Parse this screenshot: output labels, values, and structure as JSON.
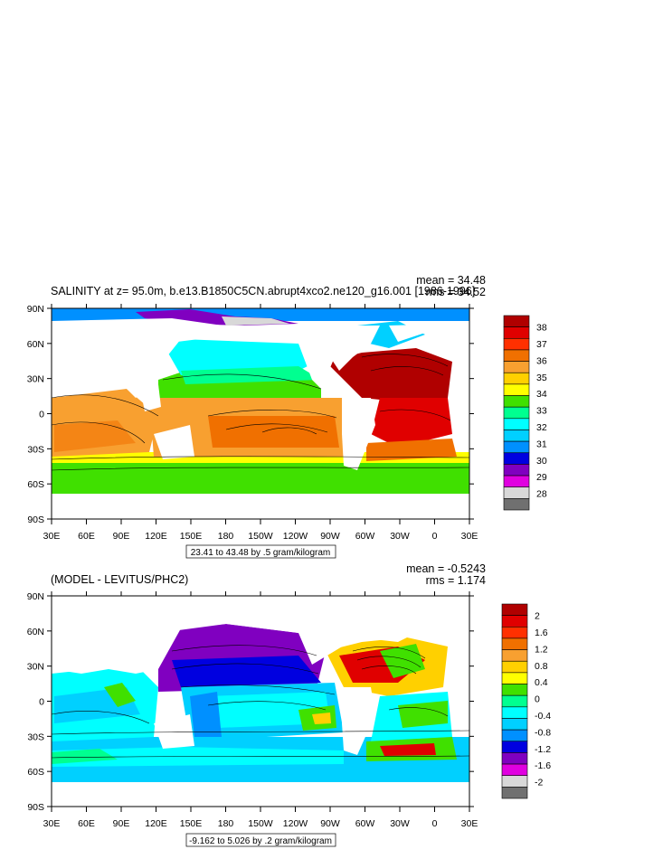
{
  "panel1": {
    "title": "SALINITY at z=  95.0m, b.e13.B1850C5CN.abrupt4xco2.ne120_g16.001 [1986-1996]",
    "mean": "mean = 34.48",
    "rms": "rms = 34.52",
    "info": "23.41 to 43.48 by .5 gram/kilogram",
    "colorbar": {
      "labels": [
        "38",
        "37",
        "36",
        "35",
        "34",
        "33",
        "32",
        "31",
        "30",
        "29",
        "28"
      ],
      "colors": [
        "#b00000",
        "#e00000",
        "#ff3000",
        "#f07000",
        "#f8a030",
        "#ffd000",
        "#ffff00",
        "#40e000",
        "#00ff90",
        "#00ffff",
        "#00d0ff",
        "#0090ff",
        "#0000e0",
        "#8000c0",
        "#e000e0",
        "#d8d8d8",
        "#707070"
      ]
    }
  },
  "panel2": {
    "title": "(MODEL - LEVITUS/PHC2)",
    "mean": "mean = -0.5243",
    "rms": "rms = 1.174",
    "info": "-9.162 to 5.026 by .2 gram/kilogram",
    "colorbar": {
      "labels": [
        "2",
        "1.6",
        "1.2",
        "0.8",
        "0.4",
        "0",
        "-0.4",
        "-0.8",
        "-1.2",
        "-1.6",
        "-2"
      ],
      "colors": [
        "#b00000",
        "#e00000",
        "#ff3000",
        "#f07000",
        "#f8a030",
        "#ffd000",
        "#ffff00",
        "#40e000",
        "#00ff90",
        "#00ffff",
        "#00d0ff",
        "#0090ff",
        "#0000e0",
        "#8000c0",
        "#e000e0",
        "#d8d8d8",
        "#707070"
      ]
    }
  },
  "axes": {
    "lat_labels": [
      "90N",
      "60N",
      "30N",
      "0",
      "30S",
      "60S",
      "90S"
    ],
    "lon_labels": [
      "30E",
      "60E",
      "90E",
      "120E",
      "150E",
      "180",
      "150W",
      "120W",
      "90W",
      "60W",
      "30W",
      "0",
      "30E"
    ]
  }
}
